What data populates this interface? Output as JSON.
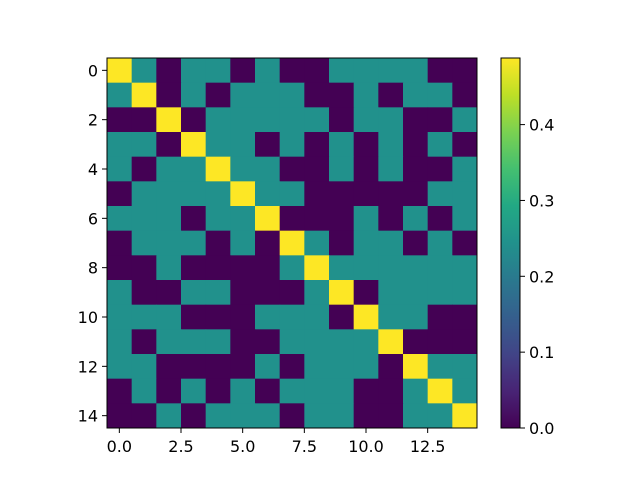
{
  "chart_data": {
    "type": "heatmap",
    "title": "",
    "xlabel": "",
    "ylabel": "",
    "rows": 15,
    "cols": 15,
    "x_ticks": [
      0.0,
      2.5,
      5.0,
      7.5,
      10.0,
      12.5
    ],
    "x_tick_labels": [
      "0.0",
      "2.5",
      "5.0",
      "7.5",
      "10.0",
      "12.5"
    ],
    "y_ticks": [
      0,
      2,
      4,
      6,
      8,
      10,
      12,
      14
    ],
    "y_tick_labels": [
      "0",
      "2",
      "4",
      "6",
      "8",
      "10",
      "12",
      "14"
    ],
    "colormap": "viridis",
    "vmin": 0.0,
    "vmax": 0.4878,
    "colorbar_ticks": [
      0.0,
      0.1,
      0.2,
      0.3,
      0.4
    ],
    "colorbar_tick_labels": [
      "0.0",
      "0.1",
      "0.2",
      "0.3",
      "0.4"
    ],
    "values": [
      [
        0.4878,
        0.2439,
        0.0,
        0.2439,
        0.2439,
        0.0,
        0.2439,
        0.0,
        0.0,
        0.2439,
        0.2439,
        0.2439,
        0.2439,
        0.0,
        0.0
      ],
      [
        0.2439,
        0.4878,
        0.0,
        0.2439,
        0.0,
        0.2439,
        0.2439,
        0.2439,
        0.0,
        0.0,
        0.2439,
        0.0,
        0.2439,
        0.2439,
        0.0
      ],
      [
        0.0,
        0.0,
        0.4878,
        0.0,
        0.2439,
        0.2439,
        0.2439,
        0.2439,
        0.2439,
        0.0,
        0.2439,
        0.2439,
        0.0,
        0.0,
        0.2439
      ],
      [
        0.2439,
        0.2439,
        0.0,
        0.4878,
        0.2439,
        0.2439,
        0.0,
        0.2439,
        0.0,
        0.2439,
        0.0,
        0.2439,
        0.0,
        0.2439,
        0.0
      ],
      [
        0.2439,
        0.0,
        0.2439,
        0.2439,
        0.4878,
        0.2439,
        0.2439,
        0.0,
        0.0,
        0.2439,
        0.0,
        0.2439,
        0.0,
        0.0,
        0.2439
      ],
      [
        0.0,
        0.2439,
        0.2439,
        0.2439,
        0.2439,
        0.4878,
        0.2439,
        0.2439,
        0.0,
        0.0,
        0.0,
        0.0,
        0.0,
        0.2439,
        0.2439
      ],
      [
        0.2439,
        0.2439,
        0.2439,
        0.0,
        0.2439,
        0.2439,
        0.4878,
        0.0,
        0.0,
        0.0,
        0.2439,
        0.0,
        0.2439,
        0.0,
        0.2439
      ],
      [
        0.0,
        0.2439,
        0.2439,
        0.2439,
        0.0,
        0.2439,
        0.0,
        0.4878,
        0.2439,
        0.0,
        0.2439,
        0.2439,
        0.0,
        0.2439,
        0.0
      ],
      [
        0.0,
        0.0,
        0.2439,
        0.0,
        0.0,
        0.0,
        0.0,
        0.2439,
        0.4878,
        0.2439,
        0.2439,
        0.2439,
        0.2439,
        0.2439,
        0.2439
      ],
      [
        0.2439,
        0.0,
        0.0,
        0.2439,
        0.2439,
        0.0,
        0.0,
        0.0,
        0.2439,
        0.4878,
        0.0,
        0.2439,
        0.2439,
        0.2439,
        0.2439
      ],
      [
        0.2439,
        0.2439,
        0.2439,
        0.0,
        0.0,
        0.0,
        0.2439,
        0.2439,
        0.2439,
        0.0,
        0.4878,
        0.2439,
        0.2439,
        0.0,
        0.0
      ],
      [
        0.2439,
        0.0,
        0.2439,
        0.2439,
        0.2439,
        0.0,
        0.0,
        0.2439,
        0.2439,
        0.2439,
        0.2439,
        0.4878,
        0.0,
        0.0,
        0.0
      ],
      [
        0.2439,
        0.2439,
        0.0,
        0.0,
        0.0,
        0.0,
        0.2439,
        0.0,
        0.2439,
        0.2439,
        0.2439,
        0.0,
        0.4878,
        0.2439,
        0.2439
      ],
      [
        0.0,
        0.2439,
        0.0,
        0.2439,
        0.0,
        0.2439,
        0.0,
        0.2439,
        0.2439,
        0.2439,
        0.0,
        0.0,
        0.2439,
        0.4878,
        0.2439
      ],
      [
        0.0,
        0.0,
        0.2439,
        0.0,
        0.2439,
        0.2439,
        0.2439,
        0.0,
        0.2439,
        0.2439,
        0.0,
        0.0,
        0.2439,
        0.2439,
        0.4878
      ]
    ]
  }
}
